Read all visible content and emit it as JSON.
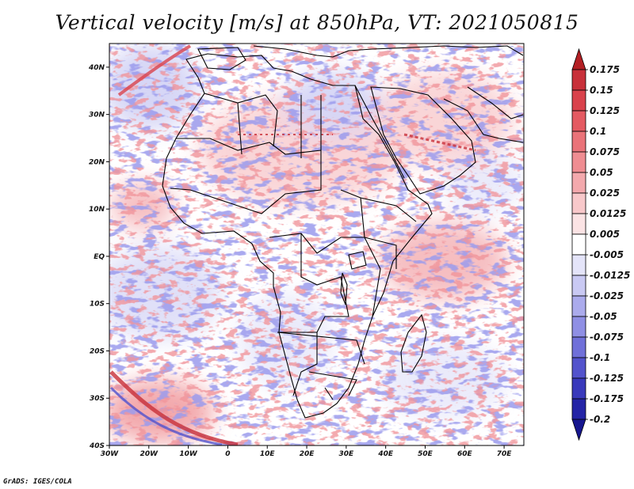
{
  "title": "Vertical velocity [m/s] at 850hPa, VT: 2021050815",
  "credit": "GrADS: IGES/COLA",
  "map": {
    "projection": "latlon",
    "lon_range": [
      -30,
      75
    ],
    "lat_range": [
      -40,
      45
    ],
    "x_ticks": [
      {
        "lon": -30,
        "label": "30W"
      },
      {
        "lon": -20,
        "label": "20W"
      },
      {
        "lon": -10,
        "label": "10W"
      },
      {
        "lon": 0,
        "label": "0"
      },
      {
        "lon": 10,
        "label": "10E"
      },
      {
        "lon": 20,
        "label": "20E"
      },
      {
        "lon": 30,
        "label": "30E"
      },
      {
        "lon": 40,
        "label": "40E"
      },
      {
        "lon": 50,
        "label": "50E"
      },
      {
        "lon": 60,
        "label": "60E"
      },
      {
        "lon": 70,
        "label": "70E"
      }
    ],
    "y_ticks": [
      {
        "lat": 40,
        "label": "40N"
      },
      {
        "lat": 30,
        "label": "30N"
      },
      {
        "lat": 20,
        "label": "20N"
      },
      {
        "lat": 10,
        "label": "10N"
      },
      {
        "lat": 0,
        "label": "EQ"
      },
      {
        "lat": -10,
        "label": "10S"
      },
      {
        "lat": -20,
        "label": "20S"
      },
      {
        "lat": -30,
        "label": "30S"
      },
      {
        "lat": -40,
        "label": "40S"
      }
    ]
  },
  "colorbar": {
    "labels": [
      "0.175",
      "0.15",
      "0.125",
      "0.1",
      "0.075",
      "0.05",
      "0.025",
      "0.0125",
      "0.005",
      "-0.005",
      "-0.0125",
      "-0.025",
      "-0.05",
      "-0.075",
      "-0.1",
      "-0.125",
      "-0.175",
      "-0.2"
    ],
    "colors": [
      "#b31f24",
      "#c8303a",
      "#d9424c",
      "#e45a62",
      "#ea7379",
      "#ef8d92",
      "#f3a9ad",
      "#f8c8ca",
      "#fbe3e4",
      "#ffffff",
      "#e4e4f9",
      "#c9c9f3",
      "#ababec",
      "#8f8fe4",
      "#7070d9",
      "#5353cc",
      "#3939bb",
      "#2424a6",
      "#16168f"
    ]
  },
  "chart_data": {
    "type": "heatmap",
    "title": "Vertical velocity [m/s] at 850hPa, VT: 2021050815",
    "variable": "Vertical velocity",
    "units": "m/s",
    "level": "850hPa",
    "valid_time": "2021050815",
    "x_range": [
      -30,
      75
    ],
    "y_range": [
      -40,
      45
    ],
    "levels": [
      -0.2,
      -0.175,
      -0.125,
      -0.1,
      -0.075,
      -0.05,
      -0.025,
      -0.0125,
      -0.005,
      0.005,
      0.0125,
      0.025,
      0.05,
      0.075,
      0.1,
      0.125,
      0.15,
      0.175
    ]
  }
}
